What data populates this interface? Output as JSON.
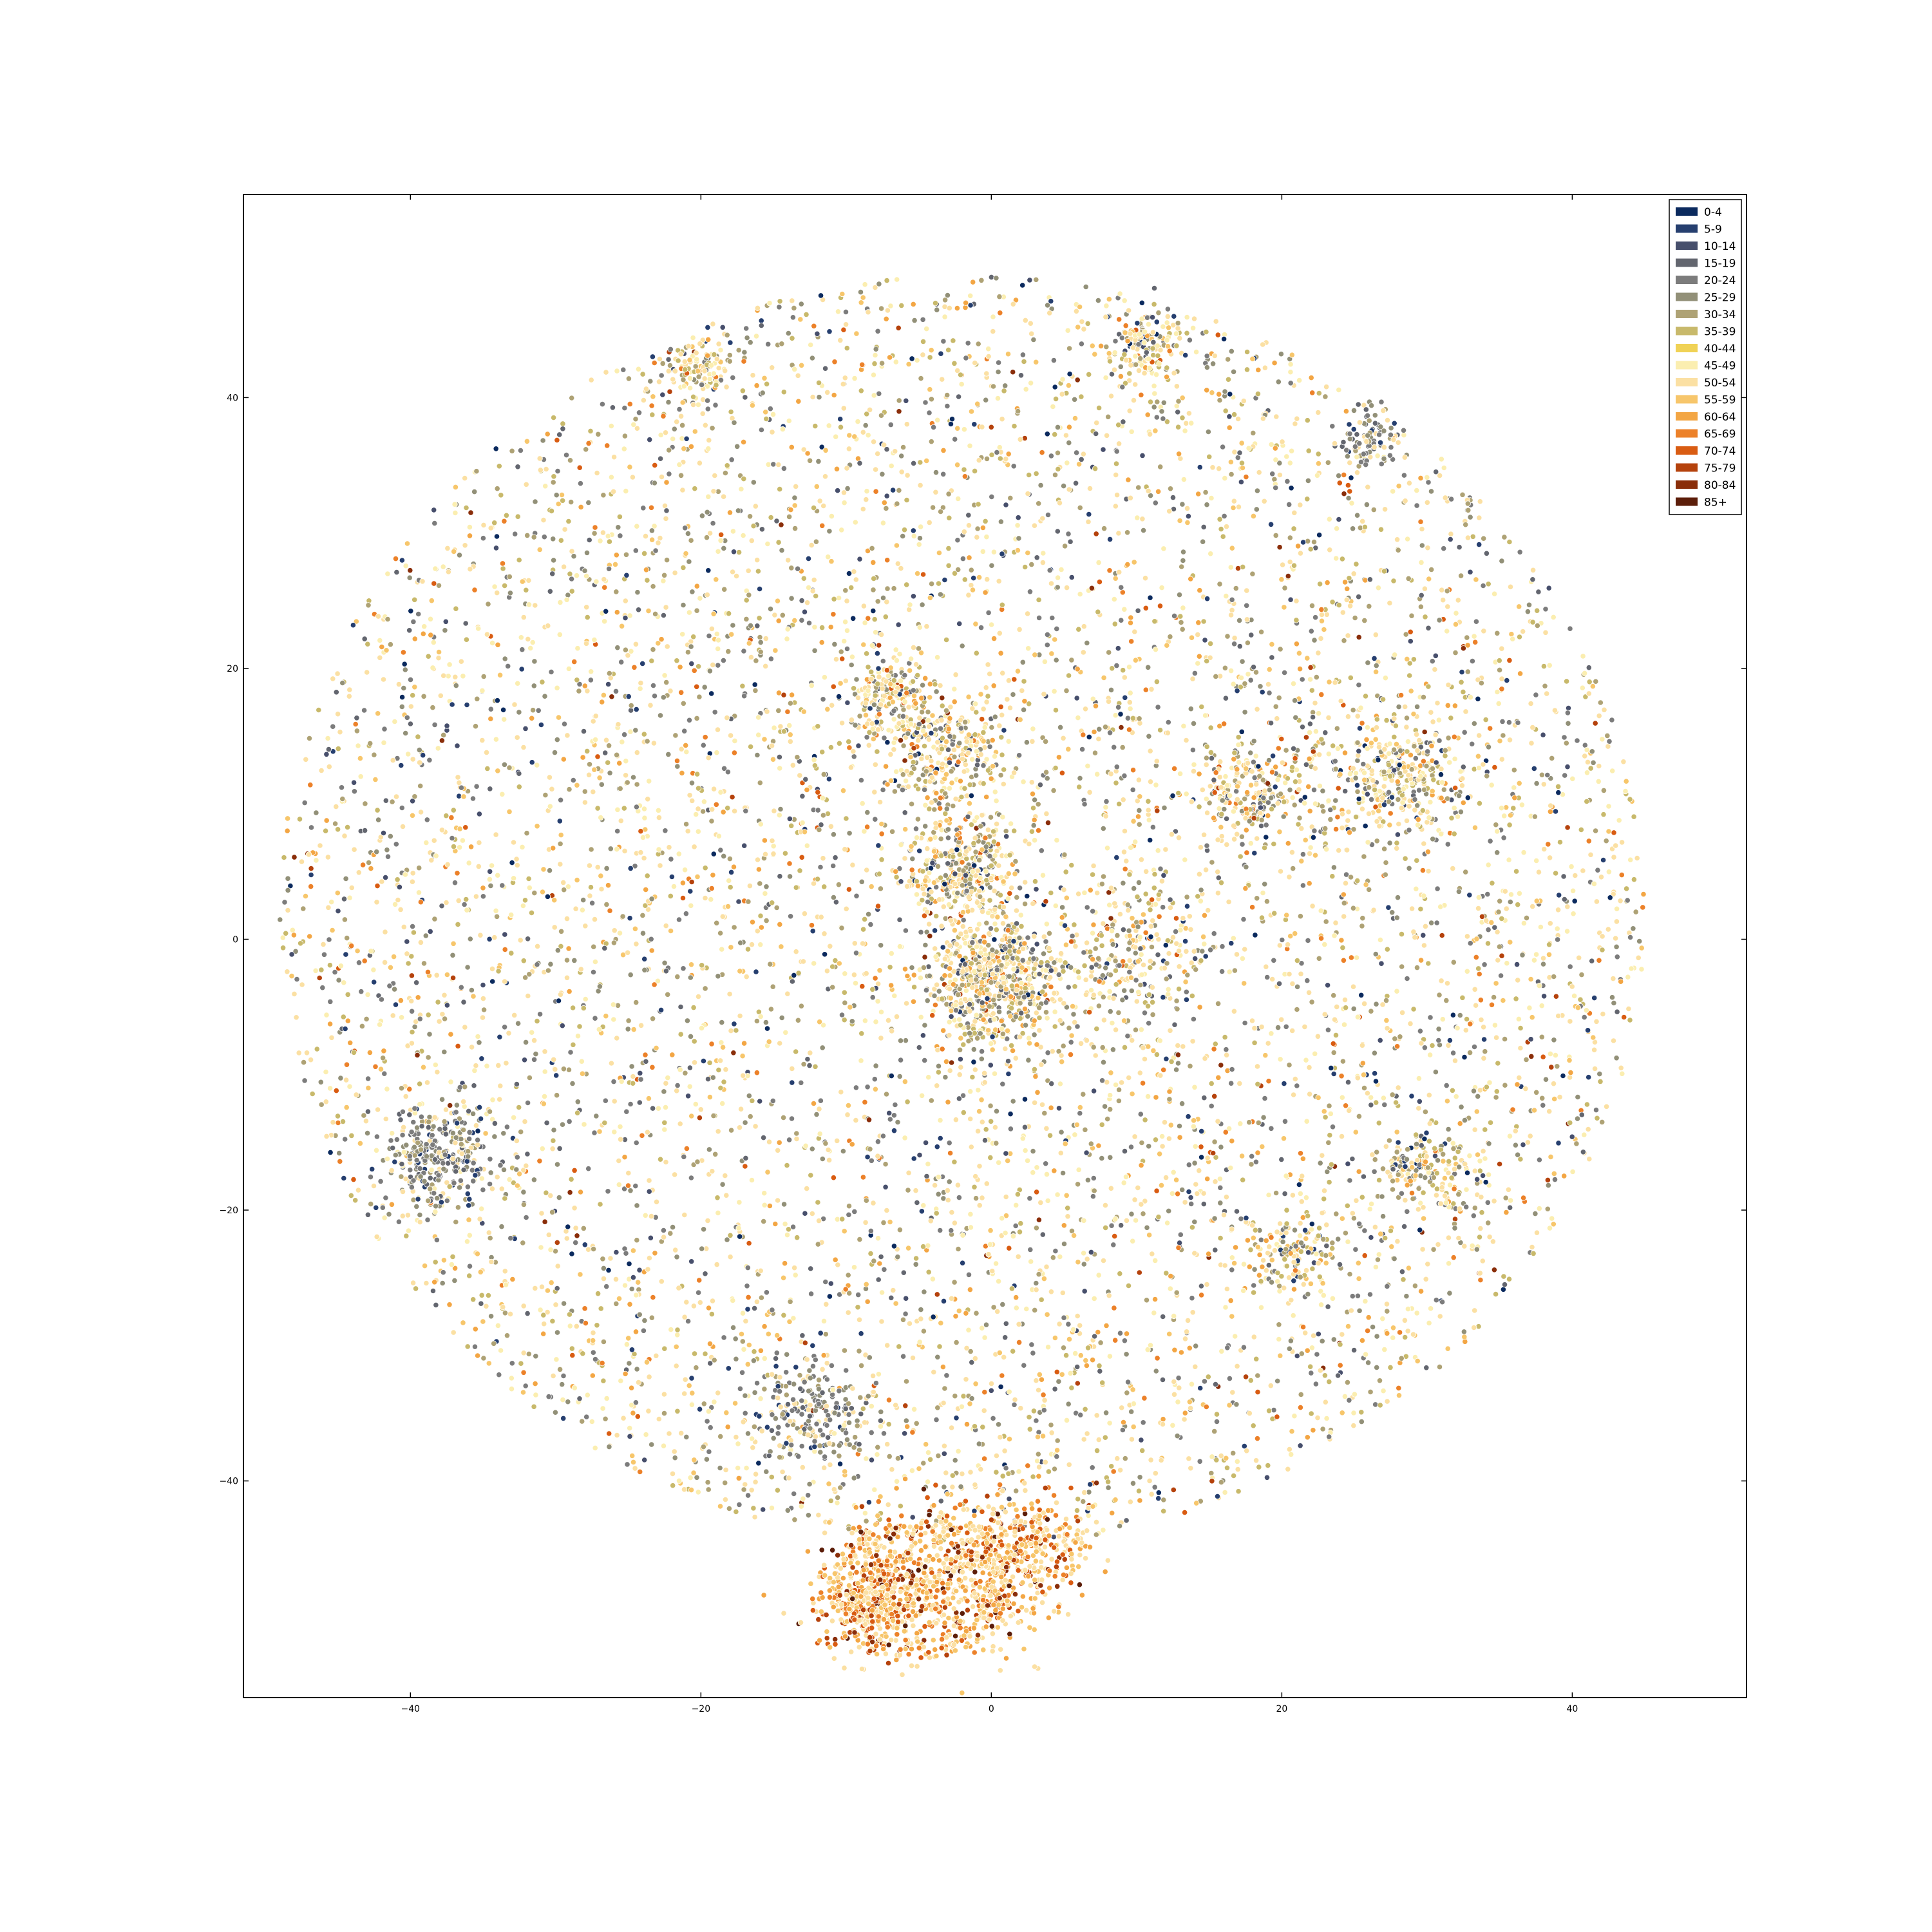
{
  "chart_data": {
    "type": "scatter",
    "title": "",
    "xlabel": "",
    "ylabel": "",
    "xlim": [
      -51.5,
      52
    ],
    "ylim": [
      -56,
      55
    ],
    "xticks": [
      -40,
      -20,
      0,
      20,
      40
    ],
    "yticks": [
      -40,
      -20,
      0,
      20,
      40
    ],
    "xtick_labels": [
      "−40",
      "−20",
      "0",
      "20",
      "40"
    ],
    "ytick_labels": [
      "−40",
      "−20",
      "0",
      "20",
      "40"
    ],
    "grid": false,
    "legend_position": "top-right",
    "legend": [
      {
        "label": "0-4",
        "color": "#0b2a5e"
      },
      {
        "label": "5-9",
        "color": "#263f6f"
      },
      {
        "label": "10-14",
        "color": "#474f6c"
      },
      {
        "label": "15-19",
        "color": "#63666f"
      },
      {
        "label": "20-24",
        "color": "#7c7c7c"
      },
      {
        "label": "25-29",
        "color": "#929078"
      },
      {
        "label": "30-34",
        "color": "#aea275"
      },
      {
        "label": "35-39",
        "color": "#c8b96b"
      },
      {
        "label": "40-44",
        "color": "#f0d256"
      },
      {
        "label": "45-49",
        "color": "#fbeeb0"
      },
      {
        "label": "50-54",
        "color": "#fbe0a3"
      },
      {
        "label": "55-59",
        "color": "#f7c66b"
      },
      {
        "label": "60-64",
        "color": "#f3a644"
      },
      {
        "label": "65-69",
        "color": "#ec8129"
      },
      {
        "label": "70-74",
        "color": "#d95c12"
      },
      {
        "label": "75-79",
        "color": "#b5420c"
      },
      {
        "label": "80-84",
        "color": "#8a2e0a"
      },
      {
        "label": "85+",
        "color": "#5c1e0a"
      }
    ],
    "clusters": [
      {
        "x": 0,
        "y": -3,
        "sd": 2.5,
        "weight": 1.0
      },
      {
        "x": -8,
        "y": -48.5,
        "sd": 2.0,
        "weight": 0.8
      },
      {
        "x": -2,
        "y": -47,
        "sd": 3.0,
        "weight": 0.8
      },
      {
        "x": 3,
        "y": -45,
        "sd": 2.0,
        "weight": 0.4
      },
      {
        "x": -38,
        "y": -16,
        "sd": 1.8,
        "weight": 0.5
      },
      {
        "x": -2,
        "y": 5,
        "sd": 2.0,
        "weight": 0.5
      },
      {
        "x": -3,
        "y": 14,
        "sd": 2.0,
        "weight": 0.4
      },
      {
        "x": 28,
        "y": 12,
        "sd": 2.5,
        "weight": 0.5
      },
      {
        "x": 18,
        "y": 11,
        "sd": 2.0,
        "weight": 0.35
      },
      {
        "x": 10,
        "y": -1,
        "sd": 2.5,
        "weight": 0.35
      },
      {
        "x": -7,
        "y": 18,
        "sd": 1.5,
        "weight": 0.3
      },
      {
        "x": -12,
        "y": -35,
        "sd": 2.0,
        "weight": 0.35
      },
      {
        "x": -20,
        "y": 42,
        "sd": 1.2,
        "weight": 0.2
      },
      {
        "x": 11,
        "y": 44,
        "sd": 1.5,
        "weight": 0.25
      },
      {
        "x": 30,
        "y": -17,
        "sd": 1.5,
        "weight": 0.25
      },
      {
        "x": 21,
        "y": -23,
        "sd": 1.5,
        "weight": 0.2
      },
      {
        "x": 26,
        "y": 37,
        "sd": 1.0,
        "weight": 0.15
      }
    ],
    "categories_mix": "mixed"
  }
}
